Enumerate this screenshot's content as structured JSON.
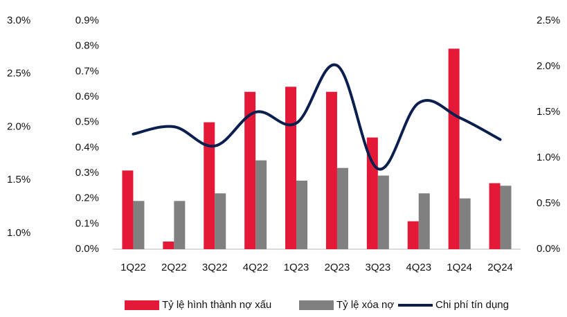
{
  "chart_data": {
    "type": "bar_line",
    "categories": [
      "1Q22",
      "2Q22",
      "3Q22",
      "4Q22",
      "1Q23",
      "2Q23",
      "3Q23",
      "4Q23",
      "1Q24",
      "2Q24"
    ],
    "series": [
      {
        "name": "Tỷ lệ hình thành nợ xấu",
        "type": "bar",
        "color": "#e31937",
        "values": [
          0.31,
          0.03,
          0.5,
          0.62,
          0.64,
          0.62,
          0.44,
          0.11,
          0.79,
          0.26
        ]
      },
      {
        "name": "Tỷ lệ xóa nợ",
        "type": "bar",
        "color": "#808080",
        "values": [
          0.19,
          0.19,
          0.22,
          0.35,
          0.27,
          0.32,
          0.29,
          0.22,
          0.2,
          0.25
        ]
      },
      {
        "name": "Chi phí tín dụng",
        "type": "line",
        "axis": "y2",
        "color": "#0b1f4f",
        "values": [
          1.26,
          1.34,
          1.13,
          1.5,
          1.38,
          2.01,
          0.88,
          1.6,
          1.44,
          1.2
        ]
      }
    ],
    "ylim": [
      0,
      0.9
    ],
    "yticks": [
      {
        "value": 0,
        "label": "0.0%"
      },
      {
        "value": 0.1,
        "label": "0.1%"
      },
      {
        "value": 0.2,
        "label": "0.2%"
      },
      {
        "value": 0.3,
        "label": "0.3%"
      },
      {
        "value": 0.4,
        "label": "0.4%"
      },
      {
        "value": 0.5,
        "label": "0.5%"
      },
      {
        "value": 0.6,
        "label": "0.6%"
      },
      {
        "value": 0.7,
        "label": "0.7%"
      },
      {
        "value": 0.8,
        "label": "0.8%"
      },
      {
        "value": 0.9,
        "label": "0.9%"
      }
    ],
    "y2lim": [
      0,
      2.5
    ],
    "y2ticks": [
      {
        "value": 0,
        "label": "0.0%"
      },
      {
        "value": 0.5,
        "label": "0.5%"
      },
      {
        "value": 1,
        "label": "1.0%"
      },
      {
        "value": 1.5,
        "label": "1.5%"
      },
      {
        "value": 2,
        "label": "2.0%"
      },
      {
        "value": 2.5,
        "label": "2.5%"
      }
    ],
    "y3lim": [
      0.85,
      3.0
    ],
    "y3ticks": [
      {
        "value": 1,
        "label": "1.0%"
      },
      {
        "value": 1.5,
        "label": "1.5%"
      },
      {
        "value": 2,
        "label": "2.0%"
      },
      {
        "value": 2.5,
        "label": "2.5%"
      },
      {
        "value": 3,
        "label": "3.0%"
      }
    ],
    "grid": false,
    "legend": "bottom"
  }
}
